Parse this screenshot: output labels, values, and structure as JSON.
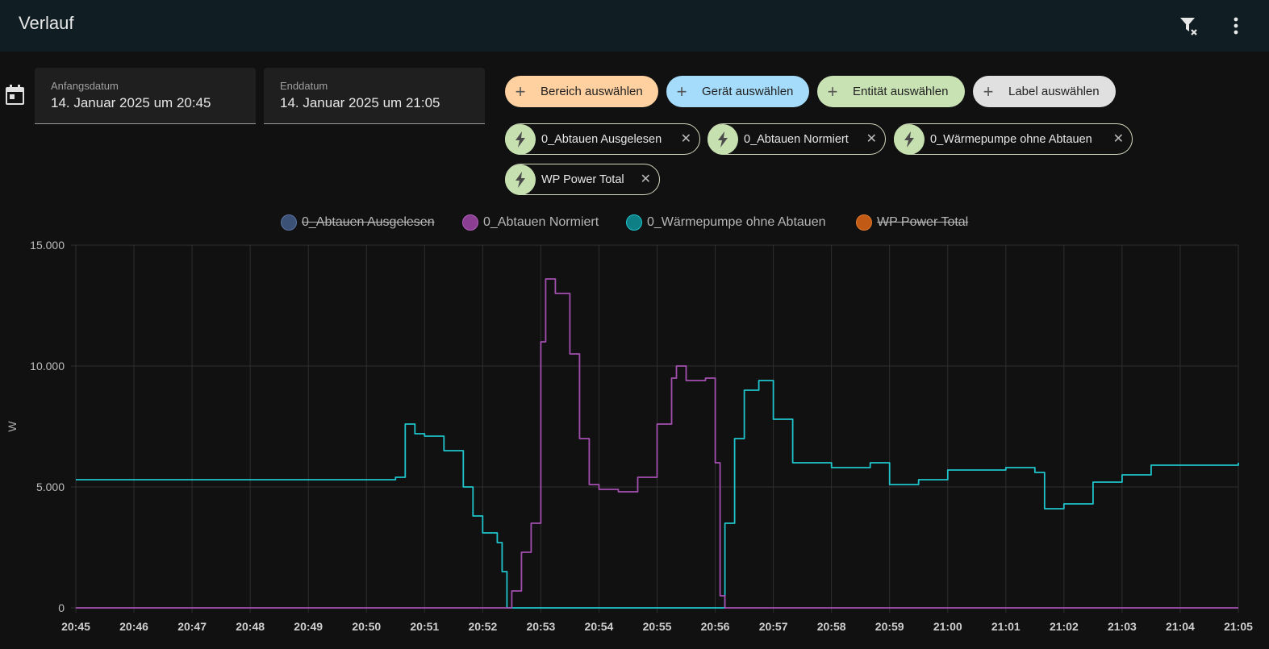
{
  "header": {
    "title": "Verlauf",
    "filter_icon": "filter-remove-icon",
    "menu_icon": "dots-vertical-icon"
  },
  "date_range": {
    "icon": "calendar-icon",
    "start": {
      "label": "Anfangsdatum",
      "value": "14. Januar 2025 um 20:45"
    },
    "end": {
      "label": "Enddatum",
      "value": "14. Januar 2025 um 21:05"
    }
  },
  "pickers": [
    {
      "label": "Bereich auswählen",
      "color": "#ffd0a0"
    },
    {
      "label": "Gerät auswählen",
      "color": "#a6dcfb"
    },
    {
      "label": "Entität auswählen",
      "color": "#c9e2b4"
    },
    {
      "label": "Label auswählen",
      "color": "#e0e0e0"
    }
  ],
  "chips": [
    {
      "label": "0_Abtauen Ausgelesen"
    },
    {
      "label": "0_Abtauen Normiert"
    },
    {
      "label": "0_Wärmepumpe ohne Abtauen"
    },
    {
      "label": "WP Power Total"
    }
  ],
  "legend": [
    {
      "label": "0_Abtauen Ausgelesen",
      "color": "#3b5276",
      "hidden": true
    },
    {
      "label": "0_Abtauen Normiert",
      "color": "#8b3f92",
      "hidden": false
    },
    {
      "label": "0_Wärmepumpe ohne Abtauen",
      "color": "#0d7f85",
      "hidden": false
    },
    {
      "label": "WP Power Total",
      "color": "#c05a14",
      "hidden": true
    }
  ],
  "chart_data": {
    "type": "line",
    "ylabel": "W",
    "ylim": [
      0,
      15000
    ],
    "yticks": [
      "0",
      "5.000",
      "10.000",
      "15.000"
    ],
    "xticks": [
      "20:45",
      "20:46",
      "20:47",
      "20:48",
      "20:49",
      "20:50",
      "20:51",
      "20:52",
      "20:53",
      "20:54",
      "20:55",
      "20:56",
      "20:57",
      "20:58",
      "20:59",
      "21:00",
      "21:01",
      "21:02",
      "21:03",
      "21:04",
      "21:05"
    ],
    "series": [
      {
        "name": "0_Wärmepumpe ohne Abtauen",
        "color": "#1fc4cc",
        "points": [
          [
            "20:45",
            5300
          ],
          [
            "20:46",
            5300
          ],
          [
            "20:47",
            5300
          ],
          [
            "20:48",
            5300
          ],
          [
            "20:49",
            5300
          ],
          [
            "20:50",
            5300
          ],
          [
            "20:50:30",
            5400
          ],
          [
            "20:50:40",
            7600
          ],
          [
            "20:50:50",
            7200
          ],
          [
            "20:51",
            7100
          ],
          [
            "20:51:20",
            6500
          ],
          [
            "20:51:40",
            5000
          ],
          [
            "20:51:50",
            3800
          ],
          [
            "20:52",
            3100
          ],
          [
            "20:52:15",
            2700
          ],
          [
            "20:52:20",
            1500
          ],
          [
            "20:52:25",
            0
          ],
          [
            "20:53",
            0
          ],
          [
            "20:54",
            0
          ],
          [
            "20:55",
            0
          ],
          [
            "20:56:05",
            0
          ],
          [
            "20:56:10",
            3500
          ],
          [
            "20:56:20",
            7000
          ],
          [
            "20:56:30",
            9000
          ],
          [
            "20:56:45",
            9400
          ],
          [
            "20:57",
            7800
          ],
          [
            "20:57:20",
            6000
          ],
          [
            "20:58",
            5800
          ],
          [
            "20:58:40",
            6000
          ],
          [
            "20:59",
            5100
          ],
          [
            "20:59:30",
            5300
          ],
          [
            "21:00",
            5700
          ],
          [
            "21:01",
            5800
          ],
          [
            "21:01:30",
            5600
          ],
          [
            "21:01:40",
            4100
          ],
          [
            "21:02",
            4300
          ],
          [
            "21:02:30",
            5200
          ],
          [
            "21:03",
            5500
          ],
          [
            "21:03:30",
            5900
          ],
          [
            "21:04",
            5900
          ],
          [
            "21:05",
            6000
          ]
        ]
      },
      {
        "name": "0_Abtauen Normiert",
        "color": "#a24fb0",
        "points": [
          [
            "20:45",
            0
          ],
          [
            "20:52",
            0
          ],
          [
            "20:52:25",
            0
          ],
          [
            "20:52:30",
            700
          ],
          [
            "20:52:40",
            2300
          ],
          [
            "20:52:50",
            3500
          ],
          [
            "20:53",
            11000
          ],
          [
            "20:53:05",
            13600
          ],
          [
            "20:53:15",
            13000
          ],
          [
            "20:53:30",
            10500
          ],
          [
            "20:53:40",
            7000
          ],
          [
            "20:53:50",
            5100
          ],
          [
            "20:54",
            4900
          ],
          [
            "20:54:20",
            4800
          ],
          [
            "20:54:40",
            5400
          ],
          [
            "20:55",
            7600
          ],
          [
            "20:55:15",
            9500
          ],
          [
            "20:55:20",
            10000
          ],
          [
            "20:55:30",
            9400
          ],
          [
            "20:55:50",
            9500
          ],
          [
            "20:56",
            6000
          ],
          [
            "20:56:05",
            500
          ],
          [
            "20:56:10",
            0
          ],
          [
            "21:00",
            0
          ],
          [
            "21:05",
            0
          ]
        ]
      }
    ]
  }
}
